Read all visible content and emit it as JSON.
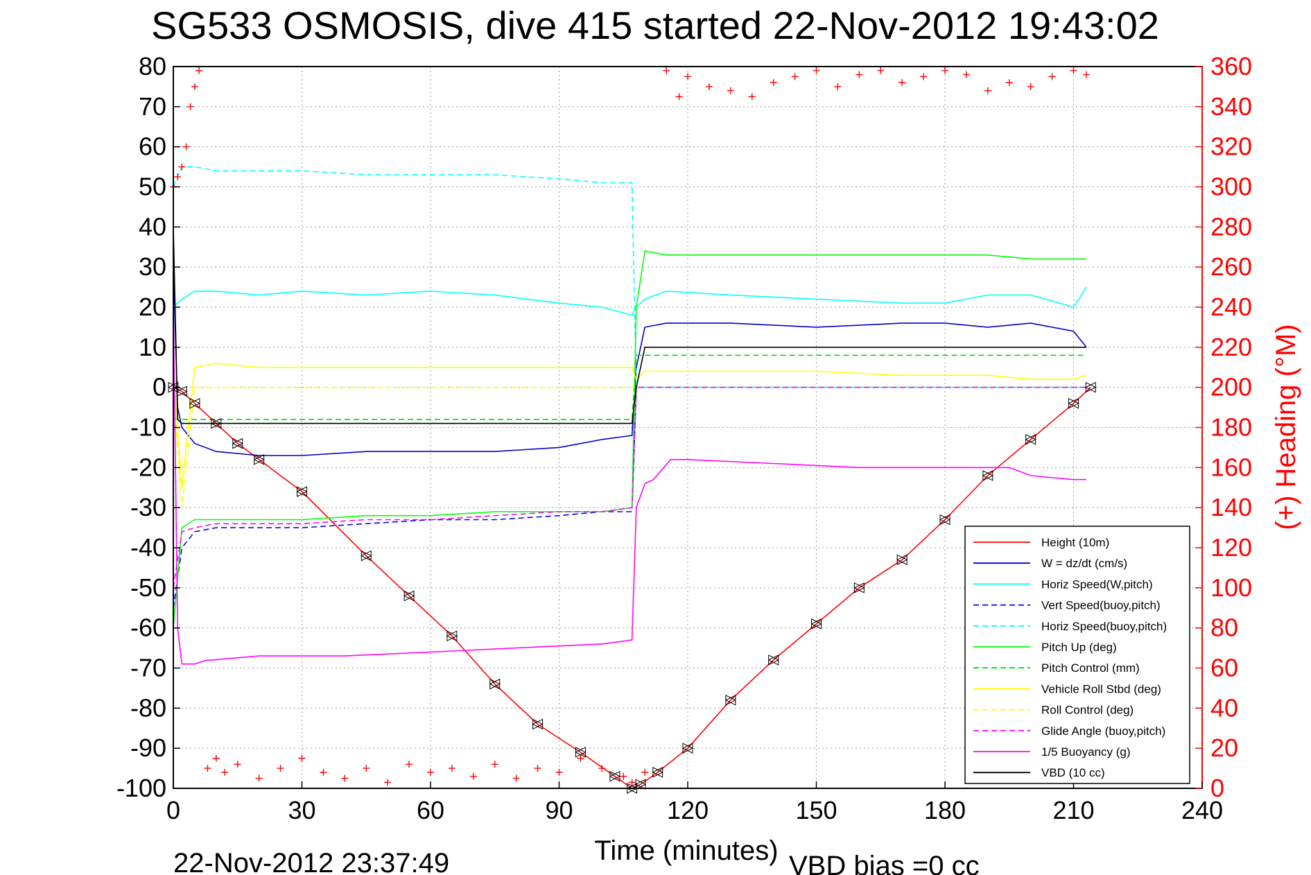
{
  "chart_data": {
    "type": "line",
    "title": "SG533 OSMOSIS, dive 415 started 22-Nov-2012 19:43:02",
    "xlabel": "Time (minutes)",
    "ylabel": "",
    "ylabel_right": "(+) Heading (°M)",
    "xlim": [
      0,
      240
    ],
    "ylim": [
      -100,
      80
    ],
    "ylim_right": [
      0,
      360
    ],
    "xticks": [
      "0",
      "30",
      "60",
      "90",
      "120",
      "150",
      "180",
      "210",
      "240"
    ],
    "yticks": [
      "80",
      "70",
      "60",
      "50",
      "40",
      "30",
      "20",
      "10",
      "0",
      "-10",
      "-20",
      "-30",
      "-40",
      "-50",
      "-60",
      "-70",
      "-80",
      "-90",
      "-100"
    ],
    "yticks_right": [
      "360",
      "340",
      "320",
      "300",
      "280",
      "260",
      "240",
      "220",
      "200",
      "180",
      "160",
      "140",
      "120",
      "100",
      "80",
      "60",
      "40",
      "20",
      "0"
    ],
    "grid": true,
    "legend_position": "bottom-right",
    "footer_left": "22-Nov-2012 23:37:49",
    "footer_right": "VBD bias =0 cc",
    "series": [
      {
        "name": "Height (10m)",
        "color": "#ff0000",
        "dash": "solid",
        "x": [
          0,
          2,
          5,
          10,
          15,
          20,
          30,
          45,
          55,
          65,
          75,
          85,
          95,
          103,
          107,
          109,
          113,
          120,
          130,
          140,
          150,
          160,
          170,
          180,
          190,
          200,
          210,
          214
        ],
        "y": [
          0,
          -1,
          -4,
          -9,
          -14,
          -18,
          -26,
          -42,
          -52,
          -62,
          -74,
          -84,
          -91,
          -97,
          -100,
          -99,
          -96,
          -90,
          -78,
          -68,
          -59,
          -50,
          -43,
          -33,
          -22,
          -13,
          -4,
          0
        ]
      },
      {
        "name": "W = dz/dt (cm/s)",
        "color": "#0000cc",
        "dash": "solid",
        "x": [
          0,
          1,
          2,
          5,
          10,
          20,
          30,
          45,
          60,
          75,
          90,
          100,
          107,
          108,
          110,
          115,
          130,
          150,
          170,
          180,
          190,
          200,
          210,
          213
        ],
        "y": [
          30,
          -5,
          -10,
          -14,
          -16,
          -17,
          -17,
          -16,
          -16,
          -16,
          -15,
          -13,
          -12,
          5,
          15,
          16,
          16,
          15,
          16,
          16,
          15,
          16,
          14,
          10
        ]
      },
      {
        "name": "Horiz Speed(W,pitch)",
        "color": "#00ffff",
        "dash": "solid",
        "x": [
          0,
          2,
          5,
          10,
          20,
          30,
          45,
          60,
          75,
          90,
          100,
          107,
          108,
          110,
          115,
          130,
          150,
          170,
          180,
          190,
          200,
          210,
          213
        ],
        "y": [
          20,
          22,
          24,
          24,
          23,
          24,
          23,
          24,
          23,
          21,
          20,
          18,
          20,
          22,
          24,
          23,
          22,
          21,
          21,
          23,
          23,
          20,
          25
        ]
      },
      {
        "name": "Vert Speed(buoy,pitch)",
        "color": "#0000ff",
        "dash": "dashed",
        "x": [
          0,
          2,
          5,
          10,
          20,
          30,
          45,
          60,
          75,
          90,
          100,
          107,
          108,
          110,
          115,
          130,
          150,
          170,
          190,
          210,
          213
        ],
        "y": [
          -55,
          -40,
          -36,
          -35,
          -35,
          -35,
          -34,
          -33,
          -33,
          -32,
          -31,
          -31,
          0,
          0,
          0,
          0,
          0,
          0,
          0,
          0,
          0
        ]
      },
      {
        "name": "Horiz Speed(buoy,pitch)",
        "color": "#00ffff",
        "dash": "dashed",
        "x": [
          0,
          2,
          5,
          10,
          20,
          30,
          45,
          60,
          75,
          90,
          100,
          107,
          108,
          110,
          130,
          150,
          170,
          190,
          210,
          213
        ],
        "y": [
          50,
          55,
          55,
          54,
          54,
          54,
          53,
          53,
          53,
          52,
          51,
          51,
          0,
          0,
          0,
          0,
          0,
          0,
          0,
          0
        ]
      },
      {
        "name": "Pitch Up (deg)",
        "color": "#00ff00",
        "dash": "solid",
        "x": [
          0,
          2,
          5,
          10,
          20,
          30,
          45,
          60,
          75,
          90,
          100,
          107,
          108,
          110,
          115,
          130,
          150,
          170,
          190,
          200,
          210,
          213
        ],
        "y": [
          -60,
          -35,
          -33,
          -33,
          -33,
          -33,
          -32,
          -32,
          -31,
          -31,
          -31,
          -30,
          20,
          34,
          33,
          33,
          33,
          33,
          33,
          32,
          32,
          32
        ]
      },
      {
        "name": "Pitch Control (mm)",
        "color": "#00dd00",
        "dash": "dashed",
        "x": [
          0,
          2,
          5,
          10,
          20,
          30,
          45,
          60,
          75,
          90,
          100,
          107,
          108,
          110,
          130,
          150,
          170,
          190,
          210,
          213
        ],
        "y": [
          -8,
          -8,
          -8,
          -8,
          -8,
          -8,
          -8,
          -8,
          -8,
          -8,
          -8,
          -8,
          8,
          8,
          8,
          8,
          8,
          8,
          8,
          8
        ]
      },
      {
        "name": "Vehicle Roll Stbd (deg)",
        "color": "#ffff00",
        "dash": "solid",
        "x": [
          0,
          2,
          5,
          10,
          20,
          30,
          45,
          60,
          75,
          90,
          100,
          107,
          108,
          110,
          130,
          150,
          170,
          190,
          200,
          210,
          213
        ],
        "y": [
          5,
          -25,
          5,
          6,
          5,
          5,
          5,
          5,
          5,
          5,
          5,
          5,
          2,
          4,
          4,
          4,
          3,
          3,
          2,
          2,
          3
        ]
      },
      {
        "name": "Roll Control (deg)",
        "color": "#ffff00",
        "dash": "dashed",
        "x": [
          0,
          2,
          5,
          10,
          20,
          30,
          45,
          60,
          75,
          90,
          100,
          107,
          108,
          110,
          130,
          150,
          170,
          190,
          210,
          213
        ],
        "y": [
          0,
          -30,
          0,
          0,
          0,
          0,
          0,
          0,
          0,
          0,
          0,
          0,
          0,
          0,
          0,
          0,
          0,
          0,
          0,
          0
        ]
      },
      {
        "name": "Glide Angle (buoy,pitch)",
        "color": "#ff00ff",
        "dash": "dashed",
        "x": [
          0,
          2,
          5,
          10,
          20,
          30,
          45,
          60,
          75,
          90,
          100,
          107,
          108,
          110,
          130,
          150,
          170,
          190,
          210,
          213
        ],
        "y": [
          -50,
          -36,
          -35,
          -34,
          -34,
          -34,
          -33,
          -33,
          -32,
          -31,
          -31,
          -30,
          0,
          0,
          0,
          0,
          0,
          0,
          0,
          0
        ]
      },
      {
        "name": "1/5 Buoyancy (g)",
        "color": "#ff00ff",
        "dash": "solid",
        "x": [
          0,
          1,
          2,
          5,
          8,
          9,
          20,
          40,
          60,
          80,
          100,
          107,
          108,
          110,
          112,
          116,
          120,
          140,
          160,
          180,
          195,
          200,
          210,
          213
        ],
        "y": [
          20,
          -60,
          -69,
          -69,
          -68,
          -68,
          -67,
          -67,
          -66,
          -65,
          -64,
          -63,
          -30,
          -24,
          -23,
          -18,
          -18,
          -19,
          -20,
          -20,
          -20,
          -22,
          -23,
          -23
        ]
      },
      {
        "name": "VBD (10 cc)",
        "color": "#000000",
        "dash": "solid",
        "x": [
          0,
          1,
          2,
          5,
          20,
          60,
          100,
          107,
          108,
          110,
          130,
          150,
          170,
          190,
          210,
          213
        ],
        "y": [
          40,
          -8,
          -9,
          -9,
          -9,
          -9,
          -9,
          -9,
          0,
          10,
          10,
          10,
          10,
          10,
          10,
          10
        ]
      }
    ],
    "heading_series": {
      "name": "(+) Heading",
      "color": "#ff0000",
      "marker": "+",
      "axis": "right",
      "x": [
        0,
        1,
        2,
        3,
        4,
        5,
        6,
        8,
        10,
        12,
        15,
        20,
        25,
        30,
        35,
        40,
        45,
        50,
        55,
        60,
        65,
        70,
        75,
        80,
        85,
        90,
        95,
        100,
        105,
        107,
        110,
        115,
        118,
        120,
        125,
        130,
        135,
        140,
        145,
        150,
        155,
        160,
        165,
        170,
        175,
        180,
        185,
        190,
        195,
        200,
        205,
        210,
        213
      ],
      "y": [
        300,
        305,
        310,
        320,
        340,
        350,
        358,
        10,
        15,
        8,
        12,
        5,
        10,
        15,
        8,
        5,
        10,
        3,
        12,
        8,
        10,
        6,
        12,
        5,
        10,
        8,
        15,
        10,
        6,
        3,
        8,
        358,
        345,
        355,
        350,
        348,
        345,
        352,
        355,
        358,
        350,
        356,
        358,
        352,
        355,
        358,
        356,
        348,
        352,
        350,
        355,
        358,
        356
      ]
    }
  },
  "legend": {
    "items": [
      {
        "label": "Height (10m)",
        "color": "#ff0000",
        "dash": "solid"
      },
      {
        "label": "W = dz/dt (cm/s)",
        "color": "#0000cc",
        "dash": "solid"
      },
      {
        "label": "Horiz Speed(W,pitch)",
        "color": "#00ffff",
        "dash": "solid"
      },
      {
        "label": "Vert Speed(buoy,pitch)",
        "color": "#0000ff",
        "dash": "dashed"
      },
      {
        "label": "Horiz Speed(buoy,pitch)",
        "color": "#00ffff",
        "dash": "dashed"
      },
      {
        "label": "Pitch Up (deg)",
        "color": "#00ff00",
        "dash": "solid"
      },
      {
        "label": "Pitch Control (mm)",
        "color": "#00dd00",
        "dash": "dashed"
      },
      {
        "label": "Vehicle Roll Stbd (deg)",
        "color": "#ffff00",
        "dash": "solid"
      },
      {
        "label": "Roll Control (deg)",
        "color": "#ffff00",
        "dash": "dashed"
      },
      {
        "label": "Glide Angle (buoy,pitch)",
        "color": "#ff00ff",
        "dash": "dashed"
      },
      {
        "label": "1/5 Buoyancy (g)",
        "color": "#ff00ff",
        "dash": "solid"
      },
      {
        "label": "VBD (10 cc)",
        "color": "#000000",
        "dash": "solid"
      }
    ]
  }
}
